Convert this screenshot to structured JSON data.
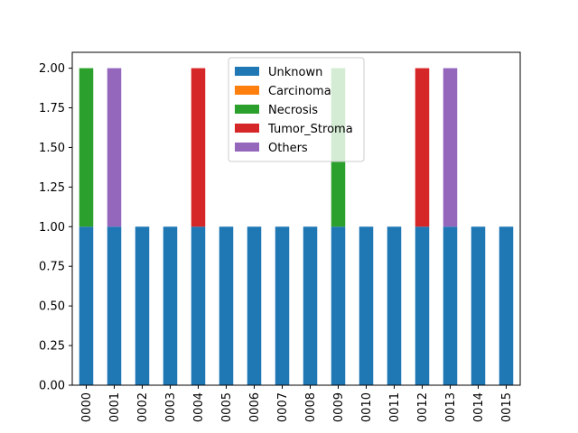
{
  "chart_data": {
    "type": "bar",
    "stacked": true,
    "categories": [
      "0000",
      "0001",
      "0002",
      "0003",
      "0004",
      "0005",
      "0006",
      "0007",
      "0008",
      "0009",
      "0010",
      "0011",
      "0012",
      "0013",
      "0014",
      "0015"
    ],
    "series": [
      {
        "name": "Unknown",
        "color": "#1f77b4",
        "values": [
          1,
          1,
          1,
          1,
          1,
          1,
          1,
          1,
          1,
          1,
          1,
          1,
          1,
          1,
          1,
          1
        ]
      },
      {
        "name": "Carcinoma",
        "color": "#ff7f0e",
        "values": [
          0,
          0,
          0,
          0,
          0,
          0,
          0,
          0,
          0,
          0,
          0,
          0,
          0,
          0,
          0,
          0
        ]
      },
      {
        "name": "Necrosis",
        "color": "#2ca02c",
        "values": [
          1,
          0,
          0,
          0,
          0,
          0,
          0,
          0,
          0,
          1,
          0,
          0,
          0,
          0,
          0,
          0
        ]
      },
      {
        "name": "Tumor_Stroma",
        "color": "#d62728",
        "values": [
          0,
          0,
          0,
          0,
          1,
          0,
          0,
          0,
          0,
          0,
          0,
          0,
          1,
          0,
          0,
          0
        ]
      },
      {
        "name": "Others",
        "color": "#9467bd",
        "values": [
          0,
          1,
          0,
          0,
          0,
          0,
          0,
          0,
          0,
          0,
          0,
          0,
          0,
          1,
          0,
          0
        ]
      }
    ],
    "yticks": [
      "0.00",
      "0.25",
      "0.50",
      "0.75",
      "1.00",
      "1.25",
      "1.50",
      "1.75",
      "2.00"
    ],
    "ylim": [
      0,
      2.1
    ],
    "xlabel": "",
    "ylabel": "",
    "title": "",
    "legend_position": "top-center",
    "grid": false
  }
}
